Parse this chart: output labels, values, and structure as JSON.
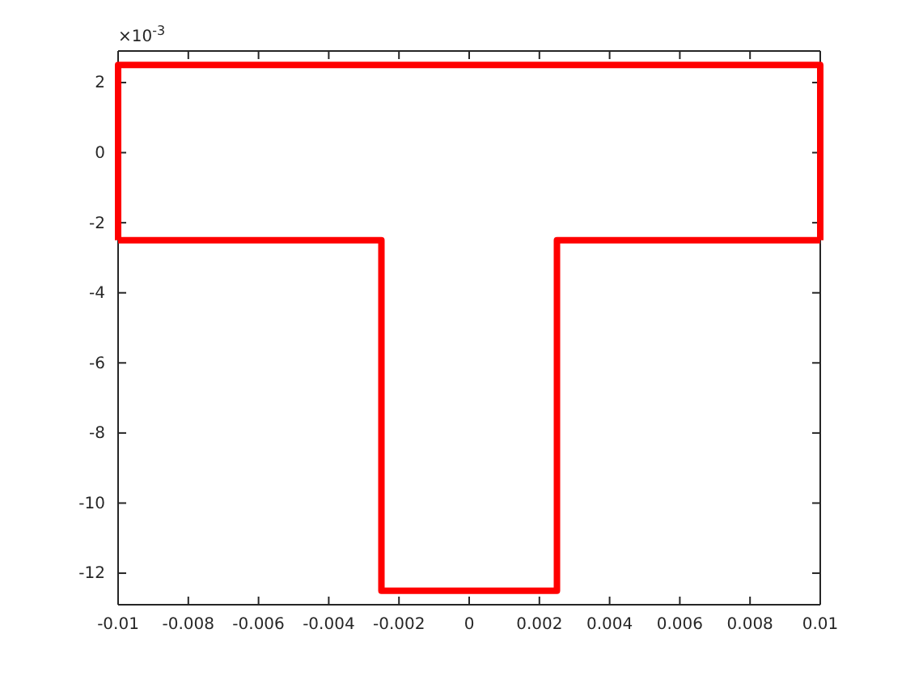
{
  "chart_data": {
    "type": "line",
    "line_style": "solid",
    "marker": "none",
    "grid": false,
    "series": [
      {
        "color": "#ff0000",
        "x": [
          -0.01,
          -0.01,
          0.01,
          0.01
        ],
        "values": [
          -2.5,
          2.5,
          2.5,
          -2.5
        ]
      },
      {
        "color": "#ff0000",
        "x": [
          -0.01,
          -0.0025,
          -0.0025,
          0.0025,
          0.0025,
          0.01
        ],
        "values": [
          -2.5,
          -2.5,
          -12.5,
          -12.5,
          -2.5,
          -2.5
        ]
      }
    ],
    "xlim": [
      -0.01,
      0.01
    ],
    "xticks": [
      -0.01,
      -0.008,
      -0.006,
      -0.004,
      -0.002,
      0,
      0.002,
      0.004,
      0.006,
      0.008,
      0.01
    ],
    "ylim": [
      -12.9,
      2.9
    ],
    "yticks": [
      -12,
      -10,
      -8,
      -6,
      -4,
      -2,
      0,
      2
    ],
    "annotations": [
      "×10$^{-3}$"
    ]
  }
}
